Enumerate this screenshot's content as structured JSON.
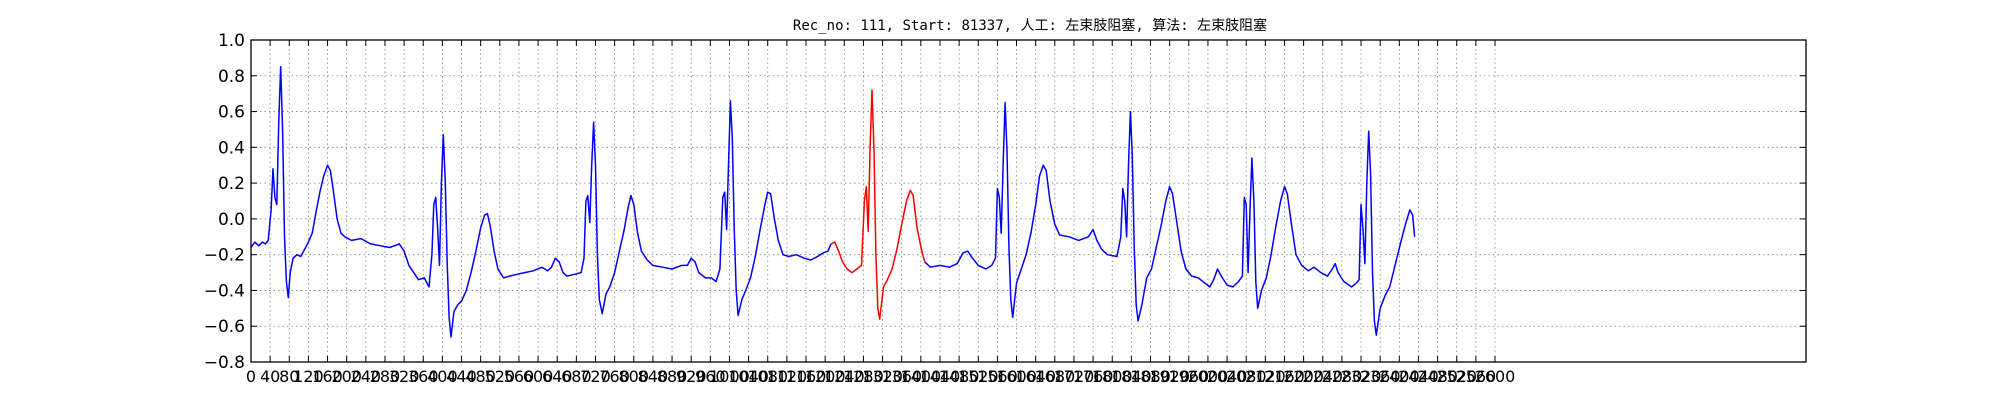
{
  "chart_data": {
    "type": "line",
    "title": "Rec_no: 111, Start: 81337, 人工: 左束肢阻塞, 算法: 左束肢阻塞",
    "xlabel": "",
    "ylabel": "",
    "xlim": [
      0,
      3250
    ],
    "ylim": [
      -0.8,
      1.0
    ],
    "grid": true,
    "grid_style": "dotted",
    "yticks": [
      "1.0",
      "0.8",
      "0.6",
      "0.4",
      "0.2",
      "0.0",
      "−0.2",
      "−0.4",
      "−0.6",
      "−0.8"
    ],
    "ytick_values": [
      1.0,
      0.8,
      0.6,
      0.4,
      0.2,
      0.0,
      -0.2,
      -0.4,
      -0.6,
      -0.8
    ],
    "xtick_values": [
      0,
      40,
      80,
      120,
      160,
      200,
      240,
      280,
      320,
      360,
      400,
      440,
      480,
      520,
      560,
      600,
      640,
      680,
      720,
      760,
      800,
      840,
      880,
      920,
      960,
      1000,
      1040,
      1080,
      1120,
      1160,
      1200,
      1240,
      1280,
      1320,
      1360,
      1400,
      1440,
      1480,
      1520,
      1560,
      1600,
      1640,
      1680,
      1720,
      1760,
      1800,
      1840,
      1880,
      1920,
      1960,
      2000,
      2040,
      2080,
      2120,
      2160,
      2200,
      2240,
      2280,
      2320,
      2360,
      2400,
      2440,
      2480,
      2520,
      2560,
      2600
    ],
    "xticks": [
      "0",
      "40",
      "80",
      "120",
      "160",
      "200",
      "240",
      "280",
      "320",
      "360",
      "400",
      "440",
      "480",
      "520",
      "560",
      "600",
      "640",
      "680",
      "720",
      "760",
      "800",
      "840",
      "880",
      "920",
      "960",
      "1000",
      "1040",
      "1080",
      "1120",
      "1160",
      "1200",
      "1240",
      "1280",
      "1320",
      "1360",
      "1400",
      "1440",
      "1480",
      "1520",
      "1560",
      "1600",
      "1640",
      "1680",
      "1720",
      "1760",
      "1800",
      "1840",
      "1880",
      "1920",
      "1960",
      "2000",
      "2040",
      "2080",
      "2120",
      "2160",
      "2200",
      "2240",
      "2280",
      "2320",
      "2360",
      "2400",
      "2440",
      "2480",
      "2520",
      "2560",
      "2600"
    ],
    "series": [
      {
        "color": "#0000ff",
        "points": [
          [
            0,
            -0.16
          ],
          [
            8,
            -0.13
          ],
          [
            16,
            -0.15
          ],
          [
            24,
            -0.13
          ],
          [
            30,
            -0.14
          ],
          [
            36,
            -0.12
          ],
          [
            42,
            0.05
          ],
          [
            46,
            0.28
          ],
          [
            50,
            0.12
          ],
          [
            54,
            0.08
          ],
          [
            58,
            0.55
          ],
          [
            62,
            0.85
          ],
          [
            66,
            0.5
          ],
          [
            70,
            -0.1
          ],
          [
            74,
            -0.35
          ],
          [
            78,
            -0.44
          ],
          [
            82,
            -0.3
          ],
          [
            88,
            -0.22
          ],
          [
            96,
            -0.2
          ],
          [
            104,
            -0.21
          ],
          [
            112,
            -0.17
          ],
          [
            120,
            -0.13
          ],
          [
            128,
            -0.08
          ],
          [
            136,
            0.04
          ],
          [
            144,
            0.15
          ],
          [
            152,
            0.24
          ],
          [
            160,
            0.3
          ],
          [
            166,
            0.27
          ],
          [
            172,
            0.16
          ],
          [
            180,
            0.0
          ],
          [
            188,
            -0.08
          ],
          [
            196,
            -0.1
          ],
          [
            210,
            -0.12
          ],
          [
            230,
            -0.11
          ],
          [
            250,
            -0.14
          ],
          [
            270,
            -0.15
          ],
          [
            290,
            -0.16
          ],
          [
            310,
            -0.14
          ],
          [
            320,
            -0.18
          ],
          [
            330,
            -0.26
          ],
          [
            340,
            -0.3
          ],
          [
            350,
            -0.34
          ],
          [
            362,
            -0.33
          ],
          [
            372,
            -0.38
          ],
          [
            378,
            -0.2
          ],
          [
            382,
            0.08
          ],
          [
            386,
            0.12
          ],
          [
            390,
            -0.05
          ],
          [
            394,
            -0.26
          ],
          [
            398,
            0.2
          ],
          [
            402,
            0.47
          ],
          [
            406,
            0.2
          ],
          [
            410,
            -0.25
          ],
          [
            414,
            -0.55
          ],
          [
            418,
            -0.66
          ],
          [
            424,
            -0.52
          ],
          [
            432,
            -0.48
          ],
          [
            440,
            -0.46
          ],
          [
            450,
            -0.4
          ],
          [
            460,
            -0.3
          ],
          [
            470,
            -0.18
          ],
          [
            480,
            -0.05
          ],
          [
            488,
            0.02
          ],
          [
            494,
            0.03
          ],
          [
            500,
            -0.04
          ],
          [
            508,
            -0.18
          ],
          [
            516,
            -0.28
          ],
          [
            528,
            -0.33
          ],
          [
            540,
            -0.32
          ],
          [
            556,
            -0.31
          ],
          [
            572,
            -0.3
          ],
          [
            590,
            -0.29
          ],
          [
            608,
            -0.27
          ],
          [
            620,
            -0.29
          ],
          [
            628,
            -0.27
          ],
          [
            636,
            -0.22
          ],
          [
            644,
            -0.24
          ],
          [
            652,
            -0.3
          ],
          [
            660,
            -0.32
          ],
          [
            676,
            -0.31
          ],
          [
            690,
            -0.3
          ],
          [
            696,
            -0.22
          ],
          [
            700,
            0.1
          ],
          [
            704,
            0.13
          ],
          [
            708,
            -0.02
          ],
          [
            712,
            0.3
          ],
          [
            716,
            0.54
          ],
          [
            720,
            0.3
          ],
          [
            724,
            -0.2
          ],
          [
            728,
            -0.45
          ],
          [
            734,
            -0.53
          ],
          [
            742,
            -0.42
          ],
          [
            750,
            -0.38
          ],
          [
            760,
            -0.3
          ],
          [
            770,
            -0.18
          ],
          [
            780,
            -0.06
          ],
          [
            788,
            0.06
          ],
          [
            794,
            0.13
          ],
          [
            800,
            0.08
          ],
          [
            808,
            -0.08
          ],
          [
            816,
            -0.18
          ],
          [
            828,
            -0.23
          ],
          [
            840,
            -0.26
          ],
          [
            860,
            -0.27
          ],
          [
            880,
            -0.28
          ],
          [
            900,
            -0.26
          ],
          [
            912,
            -0.26
          ],
          [
            920,
            -0.22
          ],
          [
            928,
            -0.24
          ],
          [
            936,
            -0.3
          ],
          [
            950,
            -0.33
          ],
          [
            962,
            -0.33
          ],
          [
            972,
            -0.35
          ],
          [
            980,
            -0.28
          ],
          [
            986,
            0.12
          ],
          [
            990,
            0.15
          ],
          [
            994,
            -0.06
          ],
          [
            998,
            0.3
          ],
          [
            1002,
            0.66
          ],
          [
            1006,
            0.45
          ],
          [
            1010,
            -0.05
          ],
          [
            1014,
            -0.4
          ],
          [
            1018,
            -0.54
          ],
          [
            1026,
            -0.45
          ],
          [
            1034,
            -0.4
          ],
          [
            1044,
            -0.33
          ],
          [
            1054,
            -0.21
          ],
          [
            1064,
            -0.06
          ],
          [
            1074,
            0.08
          ],
          [
            1080,
            0.15
          ],
          [
            1086,
            0.14
          ],
          [
            1094,
            0.0
          ],
          [
            1102,
            -0.12
          ],
          [
            1112,
            -0.2
          ],
          [
            1124,
            -0.21
          ],
          [
            1140,
            -0.2
          ],
          [
            1156,
            -0.22
          ],
          [
            1170,
            -0.23
          ],
          [
            1184,
            -0.21
          ],
          [
            1196,
            -0.19
          ],
          [
            1206,
            -0.18
          ],
          [
            1212,
            -0.14
          ]
        ]
      },
      {
        "color": "#ff0000",
        "points": [
          [
            1212,
            -0.14
          ],
          [
            1220,
            -0.13
          ],
          [
            1228,
            -0.18
          ],
          [
            1236,
            -0.24
          ],
          [
            1246,
            -0.28
          ],
          [
            1256,
            -0.3
          ],
          [
            1266,
            -0.28
          ],
          [
            1276,
            -0.26
          ],
          [
            1282,
            0.1
          ],
          [
            1286,
            0.18
          ],
          [
            1290,
            -0.07
          ],
          [
            1294,
            0.4
          ],
          [
            1298,
            0.72
          ],
          [
            1302,
            0.38
          ],
          [
            1306,
            -0.2
          ],
          [
            1310,
            -0.5
          ],
          [
            1314,
            -0.56
          ],
          [
            1322,
            -0.38
          ],
          [
            1330,
            -0.34
          ],
          [
            1340,
            -0.28
          ],
          [
            1350,
            -0.17
          ],
          [
            1360,
            -0.03
          ],
          [
            1370,
            0.1
          ],
          [
            1378,
            0.16
          ],
          [
            1384,
            0.13
          ],
          [
            1392,
            -0.05
          ],
          [
            1402,
            -0.18
          ],
          [
            1408,
            -0.24
          ]
        ]
      },
      {
        "color": "#0000ff",
        "points": [
          [
            1408,
            -0.24
          ],
          [
            1420,
            -0.27
          ],
          [
            1440,
            -0.26
          ],
          [
            1460,
            -0.27
          ],
          [
            1476,
            -0.25
          ],
          [
            1488,
            -0.19
          ],
          [
            1498,
            -0.18
          ],
          [
            1508,
            -0.22
          ],
          [
            1520,
            -0.26
          ],
          [
            1536,
            -0.28
          ],
          [
            1548,
            -0.26
          ],
          [
            1556,
            -0.22
          ],
          [
            1560,
            0.17
          ],
          [
            1564,
            0.12
          ],
          [
            1568,
            -0.08
          ],
          [
            1572,
            0.3
          ],
          [
            1576,
            0.65
          ],
          [
            1580,
            0.38
          ],
          [
            1584,
            -0.15
          ],
          [
            1588,
            -0.45
          ],
          [
            1592,
            -0.55
          ],
          [
            1600,
            -0.36
          ],
          [
            1610,
            -0.28
          ],
          [
            1620,
            -0.2
          ],
          [
            1630,
            -0.08
          ],
          [
            1640,
            0.08
          ],
          [
            1648,
            0.24
          ],
          [
            1656,
            0.3
          ],
          [
            1662,
            0.27
          ],
          [
            1670,
            0.1
          ],
          [
            1680,
            -0.03
          ],
          [
            1690,
            -0.09
          ],
          [
            1710,
            -0.1
          ],
          [
            1730,
            -0.12
          ],
          [
            1750,
            -0.1
          ],
          [
            1760,
            -0.06
          ],
          [
            1768,
            -0.12
          ],
          [
            1778,
            -0.17
          ],
          [
            1790,
            -0.2
          ],
          [
            1810,
            -0.21
          ],
          [
            1818,
            -0.1
          ],
          [
            1822,
            0.17
          ],
          [
            1826,
            0.1
          ],
          [
            1830,
            -0.1
          ],
          [
            1834,
            0.3
          ],
          [
            1838,
            0.6
          ],
          [
            1842,
            0.35
          ],
          [
            1846,
            -0.15
          ],
          [
            1850,
            -0.48
          ],
          [
            1854,
            -0.57
          ],
          [
            1862,
            -0.48
          ],
          [
            1872,
            -0.33
          ],
          [
            1882,
            -0.28
          ],
          [
            1892,
            -0.16
          ],
          [
            1902,
            -0.04
          ],
          [
            1912,
            0.1
          ],
          [
            1920,
            0.18
          ],
          [
            1926,
            0.14
          ],
          [
            1934,
            0.0
          ],
          [
            1944,
            -0.18
          ],
          [
            1954,
            -0.28
          ],
          [
            1966,
            -0.32
          ],
          [
            1980,
            -0.33
          ],
          [
            1994,
            -0.36
          ],
          [
            2004,
            -0.38
          ],
          [
            2012,
            -0.34
          ],
          [
            2020,
            -0.28
          ],
          [
            2028,
            -0.32
          ],
          [
            2040,
            -0.37
          ],
          [
            2052,
            -0.38
          ],
          [
            2064,
            -0.35
          ],
          [
            2072,
            -0.32
          ],
          [
            2076,
            0.12
          ],
          [
            2080,
            0.08
          ],
          [
            2084,
            -0.3
          ],
          [
            2088,
            0.05
          ],
          [
            2092,
            0.34
          ],
          [
            2096,
            0.1
          ],
          [
            2100,
            -0.35
          ],
          [
            2104,
            -0.5
          ],
          [
            2112,
            -0.4
          ],
          [
            2122,
            -0.33
          ],
          [
            2132,
            -0.2
          ],
          [
            2142,
            -0.04
          ],
          [
            2152,
            0.1
          ],
          [
            2160,
            0.18
          ],
          [
            2166,
            0.14
          ],
          [
            2174,
            -0.02
          ],
          [
            2184,
            -0.2
          ],
          [
            2196,
            -0.26
          ],
          [
            2210,
            -0.29
          ],
          [
            2222,
            -0.27
          ],
          [
            2236,
            -0.3
          ],
          [
            2250,
            -0.32
          ],
          [
            2260,
            -0.28
          ],
          [
            2266,
            -0.25
          ],
          [
            2272,
            -0.3
          ],
          [
            2284,
            -0.35
          ],
          [
            2300,
            -0.38
          ],
          [
            2310,
            -0.36
          ],
          [
            2316,
            -0.34
          ],
          [
            2320,
            0.08
          ],
          [
            2324,
            -0.05
          ],
          [
            2328,
            -0.25
          ],
          [
            2332,
            0.2
          ],
          [
            2336,
            0.49
          ],
          [
            2340,
            0.25
          ],
          [
            2344,
            -0.3
          ],
          [
            2348,
            -0.57
          ],
          [
            2352,
            -0.65
          ],
          [
            2360,
            -0.5
          ],
          [
            2370,
            -0.43
          ],
          [
            2380,
            -0.38
          ],
          [
            2392,
            -0.25
          ],
          [
            2404,
            -0.12
          ],
          [
            2414,
            -0.02
          ],
          [
            2422,
            0.05
          ],
          [
            2428,
            0.02
          ],
          [
            2432,
            -0.1
          ]
        ]
      }
    ]
  }
}
